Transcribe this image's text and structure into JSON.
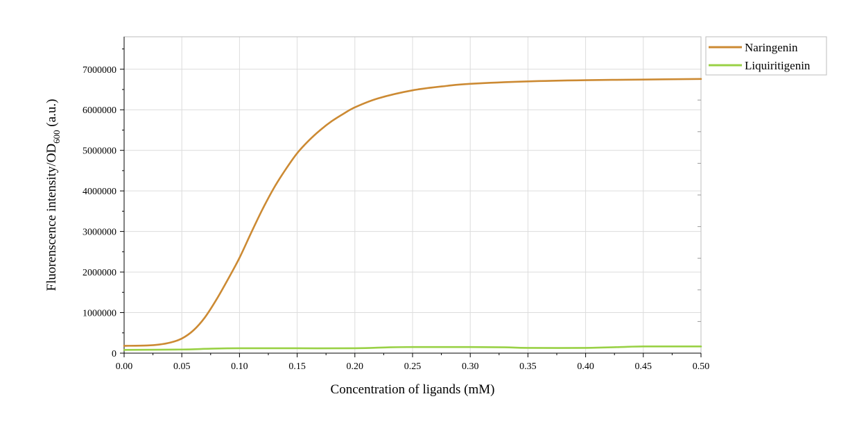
{
  "chart_data": {
    "type": "line",
    "xlabel": "Concentration of ligands (mM)",
    "ylabel_main": "Fluorenscence intensity/OD",
    "ylabel_sub": "600",
    "ylabel_suffix": " (a.u.)",
    "xlim": [
      0,
      0.5
    ],
    "ylim": [
      0,
      7800000
    ],
    "x_ticks": [
      0.0,
      0.05,
      0.1,
      0.15,
      0.2,
      0.25,
      0.3,
      0.35,
      0.4,
      0.45,
      0.5
    ],
    "x_tick_labels": [
      "0.00",
      "0.05",
      "0.10",
      "0.15",
      "0.20",
      "0.25",
      "0.30",
      "0.35",
      "0.40",
      "0.45",
      "0.50"
    ],
    "y_ticks": [
      0,
      1000000,
      2000000,
      3000000,
      4000000,
      5000000,
      6000000,
      7000000
    ],
    "y_tick_labels": [
      "0",
      "1000000",
      "2000000",
      "3000000",
      "4000000",
      "5000000",
      "6000000",
      "7000000"
    ],
    "grid": true,
    "legend_position": "top-right-outside",
    "series": [
      {
        "name": "Naringenin",
        "color": "#cc8a33",
        "x": [
          0,
          0.02,
          0.03,
          0.04,
          0.05,
          0.06,
          0.07,
          0.08,
          0.09,
          0.1,
          0.11,
          0.12,
          0.13,
          0.14,
          0.15,
          0.16,
          0.17,
          0.18,
          0.19,
          0.2,
          0.22,
          0.25,
          0.28,
          0.3,
          0.35,
          0.4,
          0.45,
          0.5
        ],
        "y": [
          180000,
          190000,
          210000,
          260000,
          360000,
          560000,
          880000,
          1320000,
          1820000,
          2350000,
          2960000,
          3550000,
          4080000,
          4530000,
          4930000,
          5240000,
          5500000,
          5720000,
          5900000,
          6060000,
          6280000,
          6480000,
          6590000,
          6640000,
          6700000,
          6730000,
          6745000,
          6760000
        ]
      },
      {
        "name": "Liquiritigenin",
        "color": "#99d145",
        "x": [
          0,
          0.05,
          0.075,
          0.1,
          0.15,
          0.2,
          0.23,
          0.25,
          0.3,
          0.33,
          0.35,
          0.4,
          0.43,
          0.45,
          0.5
        ],
        "y": [
          80000,
          90000,
          110000,
          120000,
          120000,
          120000,
          145000,
          150000,
          150000,
          145000,
          130000,
          130000,
          150000,
          165000,
          165000
        ]
      }
    ]
  }
}
